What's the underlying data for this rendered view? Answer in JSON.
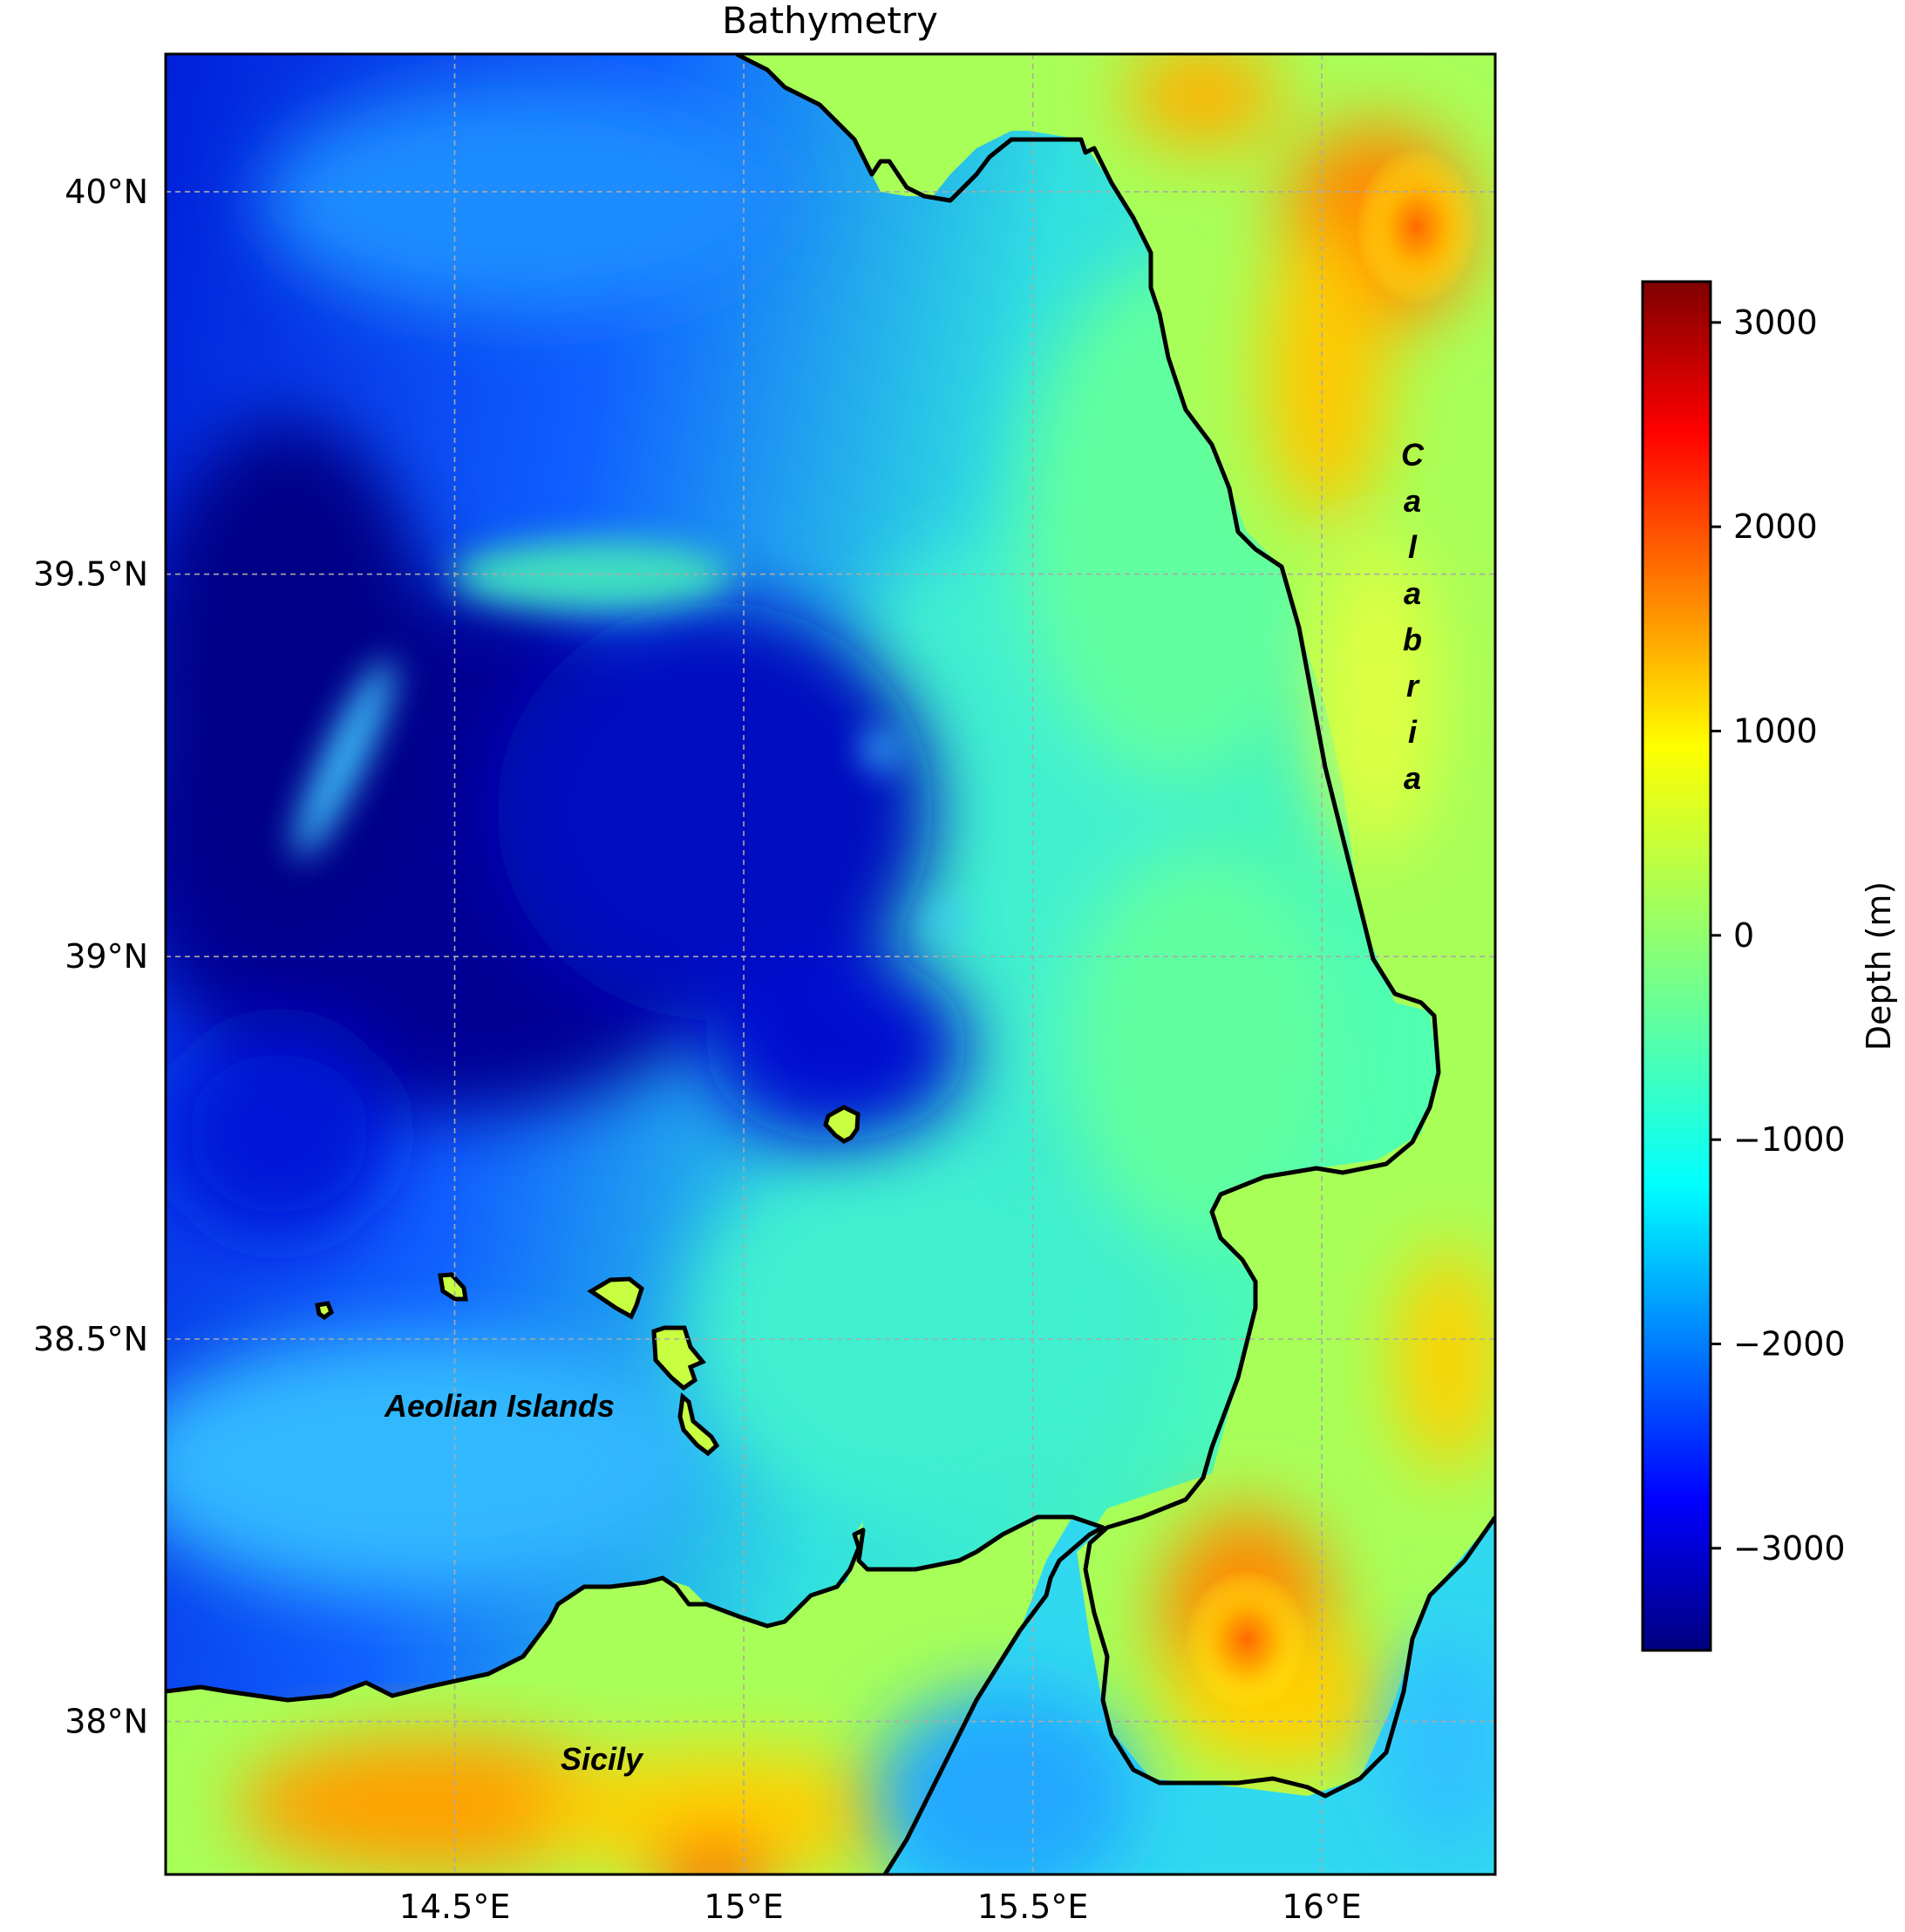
{
  "title": "Bathymetry",
  "map": {
    "lon_range": [
      14.0,
      16.3
    ],
    "lat_range": [
      37.8,
      40.18
    ],
    "lon_ticks": [
      {
        "value": 14.5,
        "label": "14.5°E"
      },
      {
        "value": 15.0,
        "label": "15°E"
      },
      {
        "value": 15.5,
        "label": "15.5°E"
      },
      {
        "value": 16.0,
        "label": "16°E"
      }
    ],
    "lat_ticks": [
      {
        "value": 40.0,
        "label": "40°N"
      },
      {
        "value": 39.5,
        "label": "39.5°N"
      },
      {
        "value": 39.0,
        "label": "39°N"
      },
      {
        "value": 38.5,
        "label": "38.5°N"
      },
      {
        "value": 38.0,
        "label": "38°N"
      }
    ],
    "gridlines": true,
    "coastline_color": "#000000",
    "labels": {
      "aeolian": "Aeolian Islands",
      "sicily": "Sicily",
      "calabria": [
        "C",
        "a",
        "l",
        "a",
        "b",
        "r",
        "i",
        "a"
      ]
    }
  },
  "colorbar": {
    "label": "Depth (m)",
    "colormap": "jet",
    "range": [
      -3500,
      3200
    ],
    "ticks": [
      {
        "value": 3000,
        "label": "3000"
      },
      {
        "value": 2000,
        "label": "2000"
      },
      {
        "value": 1000,
        "label": "1000"
      },
      {
        "value": 0,
        "label": "0"
      },
      {
        "value": -1000,
        "label": "−1000"
      },
      {
        "value": -2000,
        "label": "−2000"
      },
      {
        "value": -3000,
        "label": "−3000"
      }
    ]
  },
  "colors": {
    "deep": "#00008f",
    "mid_deep": "#0040ff",
    "shelf": "#40ffc0",
    "land_low": "#a0ff60",
    "land_high": "#ffa000",
    "peak": "#800000"
  }
}
